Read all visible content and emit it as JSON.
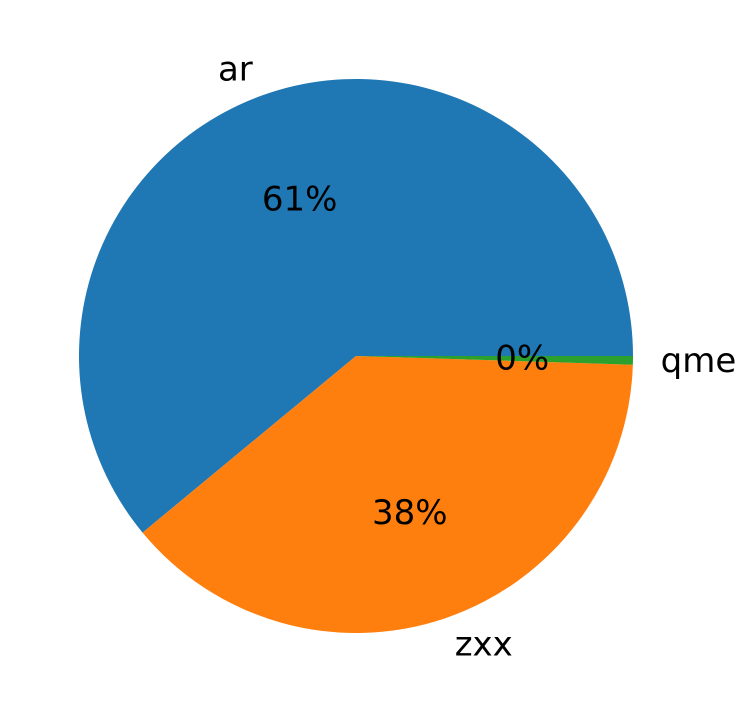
{
  "chart_data": {
    "type": "pie",
    "title": "",
    "categories": [
      "ar",
      "zxx",
      "qme"
    ],
    "values": [
      61,
      38.5,
      0.5
    ],
    "percent_labels": [
      "61%",
      "38%",
      "0%"
    ],
    "colors": [
      "#1f77b4",
      "#ff7f0e",
      "#2ca02c"
    ],
    "start_angle_deg": 0,
    "direction": "counterclockwise"
  }
}
